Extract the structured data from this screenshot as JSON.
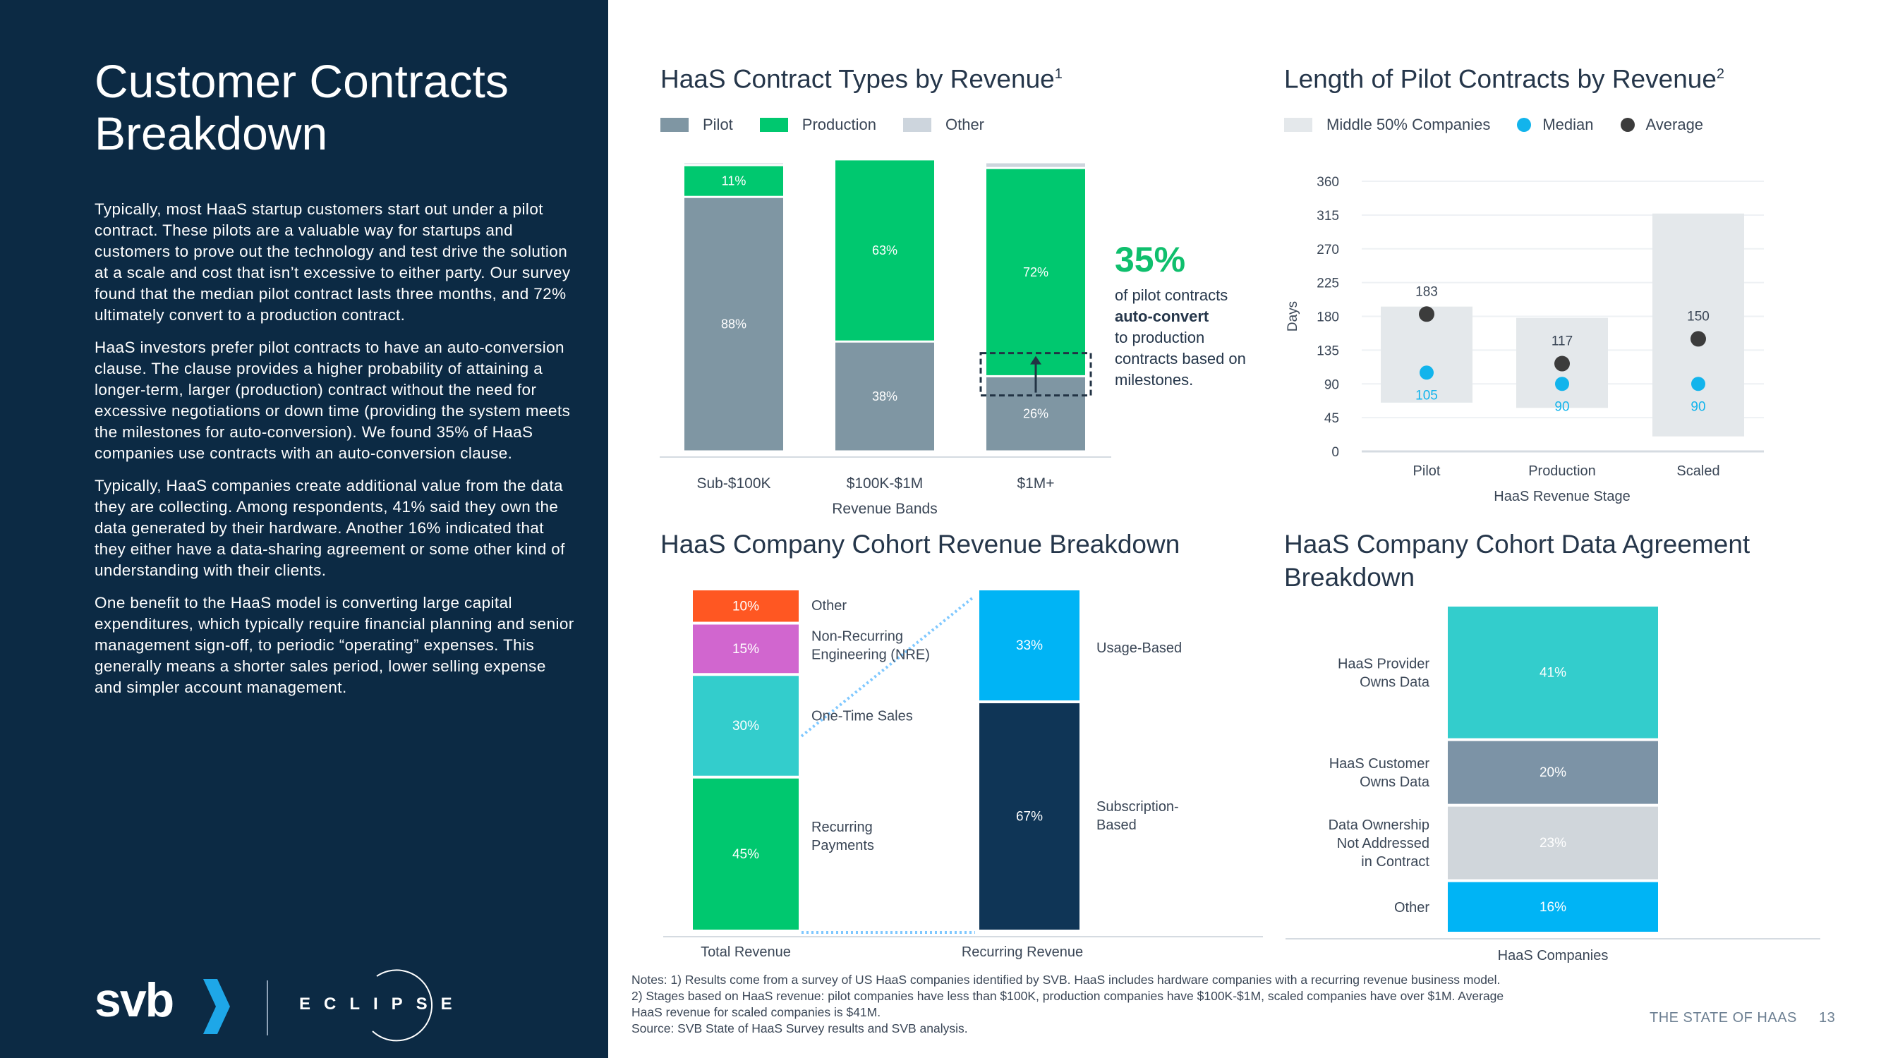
{
  "page": {
    "title": "Customer Contracts Breakdown",
    "paragraphs": [
      "Typically, most HaaS startup customers start out under a pilot contract. These pilots are a valuable way for startups and customers to prove out the technology and test drive the solution at a scale and cost that isn’t excessive to either party. Our survey found that the median pilot contract lasts three months, and 72% ultimately convert to a production contract.",
      "HaaS investors prefer pilot contracts to have an auto-conversion clause. The clause provides a higher probability of attaining a longer-term, larger (production) contract without the need for excessive negotiations or down time (providing the system meets the milestones for auto-conversion). We found 35% of HaaS companies use contracts with an auto-conversion clause.",
      "Typically, HaaS companies create additional value from the data they are collecting. Among respondents, 41% said they own the data generated by their hardware. Another 16% indicated that they either have a data-sharing agreement or some other kind of understanding with their clients.",
      "One benefit to the HaaS model is converting large capital expenditures, which typically require financial planning and senior management sign-off, to periodic “operating” expenses. This generally means a shorter sales period, lower selling expense and simpler account management."
    ],
    "logo_svb": "svb",
    "logo_eclipse": "ECLIPSE",
    "notes_line1": "Notes: 1) Results come from a survey of US HaaS companies identified by SVB. HaaS includes hardware companies with a recurring revenue business model. 2) Stages based on HaaS revenue: pilot companies have less than $100K, production companies have $100K-$1M, scaled companies have over $1M. Average HaaS revenue for scaled companies is $41M.",
    "notes_line2": "Source: SVB State of HaaS Survey results and SVB analysis.",
    "footer_label": "THE STATE OF HAAS",
    "page_number": "13"
  },
  "colors": {
    "navy": "#0c2a44",
    "pilot": "#7f96a3",
    "production": "#00c86f",
    "other": "#cdd5dd",
    "median": "#12b4ec",
    "average": "#3c3c3c",
    "range": "#e4e8eb",
    "orange": "#ff5722",
    "purple": "#d166cf",
    "teal": "#33cdcc",
    "green": "#00c86f",
    "blue": "#00b4f5",
    "darknavy": "#0f3556",
    "slate": "#7c93a6",
    "lightgray": "#d0d6db"
  },
  "callout": {
    "big": "35%",
    "line1": "of pilot contracts",
    "bold": "auto-convert",
    "line2": "to production contracts based on milestones."
  },
  "chart_data": [
    {
      "id": "contract_types",
      "type": "bar",
      "stacked": true,
      "title": "HaaS Contract Types by Revenue",
      "title_sup": "1",
      "xlabel": "Revenue Bands",
      "categories": [
        "Sub-$100K",
        "$100K-$1M",
        "$1M+"
      ],
      "series": [
        {
          "name": "Pilot",
          "values": [
            88,
            38,
            26
          ],
          "labels": [
            "88%",
            "38%",
            "26%"
          ]
        },
        {
          "name": "Production",
          "values": [
            11,
            63,
            72
          ],
          "labels": [
            "11%",
            "63%",
            "72%"
          ]
        },
        {
          "name": "Other",
          "values": [
            1,
            0,
            2
          ],
          "labels": [
            "",
            "",
            ""
          ]
        }
      ],
      "legend": [
        "Pilot",
        "Production",
        "Other"
      ]
    },
    {
      "id": "pilot_length",
      "type": "scatter",
      "title": "Length of Pilot Contracts by Revenue",
      "title_sup": "2",
      "xlabel": "HaaS Revenue Stage",
      "ylabel": "Days",
      "ylim": [
        0,
        360
      ],
      "yticks": [
        0,
        45,
        90,
        135,
        180,
        225,
        270,
        315,
        360
      ],
      "categories": [
        "Pilot",
        "Production",
        "Scaled"
      ],
      "middle_50_ranges": [
        [
          65,
          193
        ],
        [
          58,
          178
        ],
        [
          20,
          317
        ]
      ],
      "median": [
        105,
        90,
        90
      ],
      "average": [
        183,
        117,
        150
      ],
      "median_labels": [
        "105",
        "90",
        "90"
      ],
      "average_labels": [
        "183",
        "117",
        "150"
      ],
      "legend": [
        "Middle 50% Companies",
        "Median",
        "Average"
      ]
    },
    {
      "id": "cohort_revenue",
      "type": "bar",
      "stacked": true,
      "title": "HaaS Company Cohort Revenue Breakdown",
      "categories": [
        "Total Revenue",
        "Recurring Revenue"
      ],
      "total_revenue": [
        {
          "name": "Recurring Payments",
          "value": 45,
          "label": "45%"
        },
        {
          "name": "One-Time Sales",
          "value": 30,
          "label": "30%"
        },
        {
          "name": "Non-Recurring Engineering (NRE)",
          "value": 15,
          "label": "15%"
        },
        {
          "name": "Other",
          "value": 10,
          "label": "10%"
        }
      ],
      "recurring_revenue": [
        {
          "name": "Subscription-Based",
          "value": 67,
          "label": "67%"
        },
        {
          "name": "Usage-Based",
          "value": 33,
          "label": "33%"
        }
      ],
      "segment_labels": {
        "other": "Other",
        "nre_1": "Non-Recurring",
        "nre_2": "Engineering (NRE)",
        "one_time": "One-Time Sales",
        "recurring_1": "Recurring",
        "recurring_2": "Payments",
        "usage": "Usage-Based",
        "subscription_1": "Subscription-",
        "subscription_2": "Based"
      }
    },
    {
      "id": "data_agreement",
      "type": "bar",
      "stacked": true,
      "title": "HaaS Company Cohort Data Agreement Breakdown",
      "xlabel": "HaaS Companies",
      "segments": [
        {
          "name": "HaaS Provider Owns Data",
          "value": 41,
          "label": "41%"
        },
        {
          "name": "HaaS Customer Owns Data",
          "value": 20,
          "label": "20%"
        },
        {
          "name": "Data Ownership Not Addressed in Contract",
          "value": 23,
          "label": "23%"
        },
        {
          "name": "Other",
          "value": 16,
          "label": "16%"
        }
      ],
      "category_lines": {
        "provider": [
          "HaaS Provider",
          "Owns Data"
        ],
        "customer": [
          "HaaS Customer",
          "Owns Data"
        ],
        "not_addressed": [
          "Data Ownership",
          "Not Addressed",
          "in Contract"
        ],
        "other": [
          "Other"
        ]
      }
    }
  ]
}
